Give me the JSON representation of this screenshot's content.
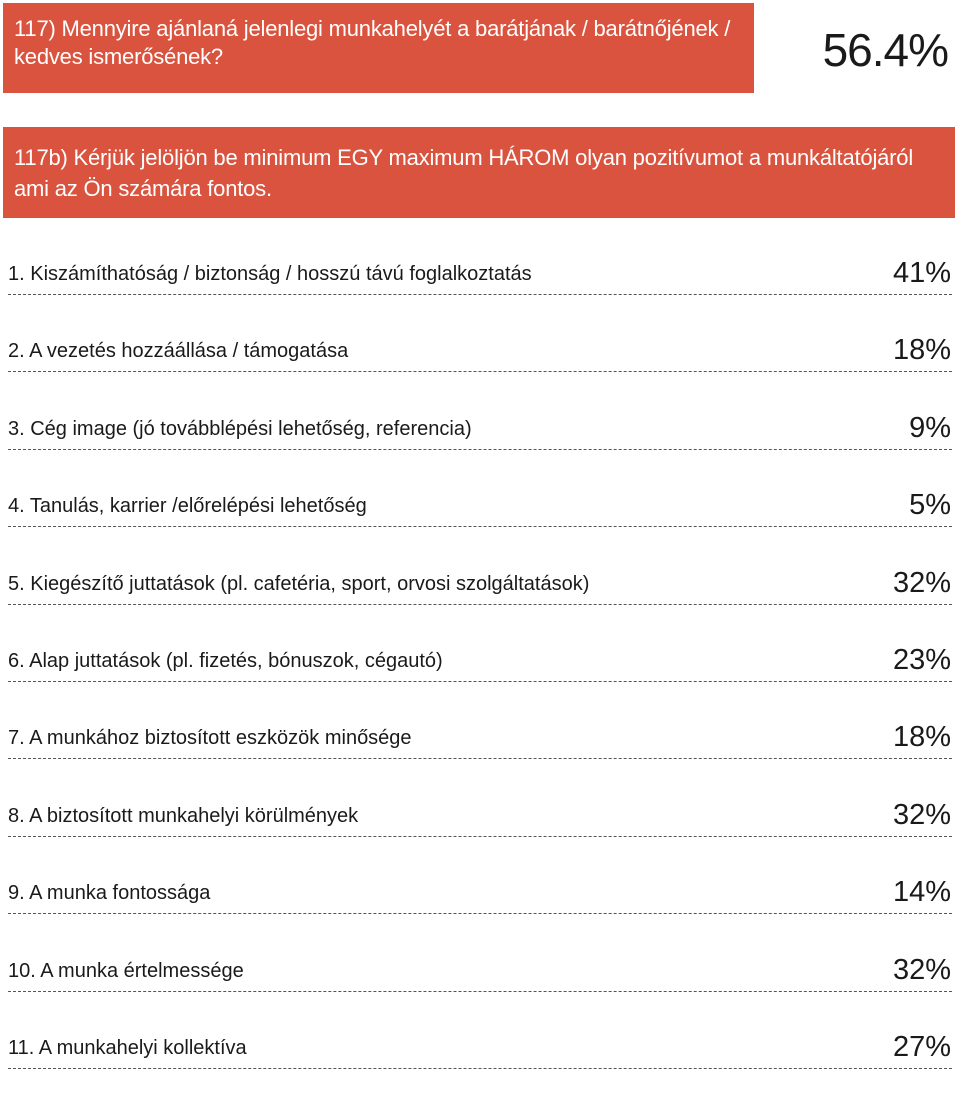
{
  "question1": {
    "text": "117) Mennyire ajánlaná jelenlegi munkahelyét a barátjának / barátnőjének / kedves ismerősének?",
    "value": "56.4%"
  },
  "question2": {
    "text": "117b) Kérjük jelöljön be minimum EGY maximum HÁROM olyan pozitívumot a munkáltatójáról ami az Ön számára fontos."
  },
  "items": [
    {
      "label": "1. Kiszámíthatóság / biztonság / hosszú távú foglalkoztatás",
      "value": "41%"
    },
    {
      "label": "2. A vezetés hozzáállása / támogatása",
      "value": "18%"
    },
    {
      "label": "3. Cég image (jó továbblépési lehetőség, referencia)",
      "value": "9%"
    },
    {
      "label": "4. Tanulás, karrier /előrelépési lehetőség",
      "value": "5%"
    },
    {
      "label": "5. Kiegészítő juttatások (pl. cafetéria, sport, orvosi szolgáltatások)",
      "value": "32%"
    },
    {
      "label": "6. Alap juttatások (pl. fizetés, bónuszok, cégautó)",
      "value": "23%"
    },
    {
      "label": "7. A munkához biztosított eszközök minősége",
      "value": "18%"
    },
    {
      "label": "8. A biztosított munkahelyi körülmények",
      "value": "32%"
    },
    {
      "label": "9. A munka fontossága",
      "value": "14%"
    },
    {
      "label": "10. A munka értelmessége",
      "value": "32%"
    },
    {
      "label": "11. A munkahelyi kollektíva",
      "value": "27%"
    }
  ],
  "colors": {
    "banner": "#d9533e",
    "text": "#1a1a1a"
  }
}
